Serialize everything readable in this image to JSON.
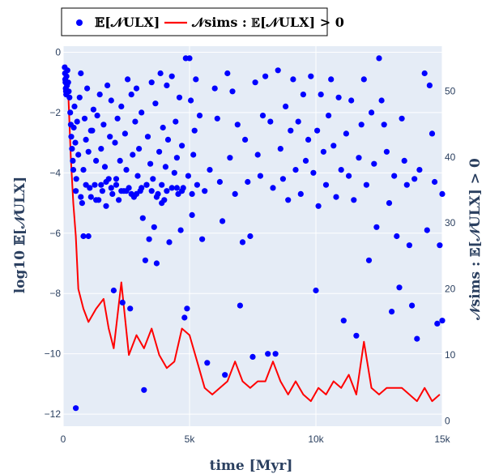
{
  "chart_data": {
    "type": "scatter",
    "legend_position": "top-left",
    "grid": true,
    "colors": {
      "plot_bg": "#E5ECF6",
      "grid": "#ffffff",
      "points": "#0000ff",
      "line": "#ff0000",
      "text": "#2a3f5f"
    },
    "xlabel": "time [Myr]",
    "ylabel_left": "log10 𝔼[𝒩ULX]",
    "ylabel_right": "𝒩sims : 𝔼[𝒩ULX] > 0",
    "xlim": [
      0,
      15000
    ],
    "ylim_left": [
      -12.4,
      0.2
    ],
    "ylim_right": [
      -0.8,
      56.8
    ],
    "x_ticks": [
      {
        "value": 0,
        "label": "0"
      },
      {
        "value": 5000,
        "label": "5k"
      },
      {
        "value": 10000,
        "label": "10k"
      },
      {
        "value": 15000,
        "label": "15k"
      }
    ],
    "y_ticks_left": [
      {
        "value": 0,
        "label": "0"
      },
      {
        "value": -2,
        "label": "−2"
      },
      {
        "value": -4,
        "label": "−4"
      },
      {
        "value": -6,
        "label": "−6"
      },
      {
        "value": -8,
        "label": "−8"
      },
      {
        "value": -10,
        "label": "−10"
      },
      {
        "value": -12,
        "label": "−12"
      }
    ],
    "y_ticks_right": [
      {
        "value": 0,
        "label": "0"
      },
      {
        "value": 10,
        "label": "10"
      },
      {
        "value": 20,
        "label": "20"
      },
      {
        "value": 30,
        "label": "30"
      },
      {
        "value": 40,
        "label": "40"
      },
      {
        "value": 50,
        "label": "50"
      }
    ],
    "series": [
      {
        "name": "𝔼[𝒩ULX]",
        "type": "scatter",
        "axis": "left",
        "points": [
          [
            60,
            -0.5
          ],
          [
            70,
            -0.7
          ],
          [
            80,
            -0.9
          ],
          [
            90,
            -1.0
          ],
          [
            100,
            -1.2
          ],
          [
            110,
            -1.3
          ],
          [
            120,
            -1.4
          ],
          [
            130,
            -0.8
          ],
          [
            150,
            -1.1
          ],
          [
            170,
            -0.6
          ],
          [
            200,
            -1.0
          ],
          [
            220,
            -1.3
          ],
          [
            250,
            -1.5
          ],
          [
            280,
            -2.0
          ],
          [
            300,
            -2.4
          ],
          [
            320,
            -2.8
          ],
          [
            350,
            -3.2
          ],
          [
            380,
            -3.6
          ],
          [
            400,
            -3.9
          ],
          [
            420,
            -2.5
          ],
          [
            450,
            -1.8
          ],
          [
            480,
            -3.0
          ],
          [
            500,
            -11.8
          ],
          [
            520,
            -4.2
          ],
          [
            550,
            -2.3
          ],
          [
            600,
            -3.4
          ],
          [
            650,
            -1.5
          ],
          [
            700,
            -0.7
          ],
          [
            750,
            -5.0
          ],
          [
            800,
            -3.9
          ],
          [
            800,
            -6.1
          ],
          [
            850,
            -2.2
          ],
          [
            900,
            -2.9
          ],
          [
            950,
            -1.2
          ],
          [
            1000,
            -3.3
          ],
          [
            1000,
            -6.1
          ],
          [
            1050,
            -4.5
          ],
          [
            1100,
            -4.8
          ],
          [
            1150,
            -2.6
          ],
          [
            1200,
            -1.9
          ],
          [
            1250,
            -4.4
          ],
          [
            1300,
            -3.6
          ],
          [
            1350,
            -2.1
          ],
          [
            1400,
            -4.9
          ],
          [
            1450,
            -1.4
          ],
          [
            1500,
            -3.2
          ],
          [
            1550,
            -4.6
          ],
          [
            1600,
            -2.4
          ],
          [
            1650,
            -3.8
          ],
          [
            1700,
            -5.1
          ],
          [
            1750,
            -1.1
          ],
          [
            1800,
            -4.2
          ],
          [
            1850,
            -2.8
          ],
          [
            1900,
            -1.6
          ],
          [
            1950,
            -4.7
          ],
          [
            2000,
            -7.9
          ],
          [
            2050,
            -3.0
          ],
          [
            2100,
            -4.4
          ],
          [
            2150,
            -2.2
          ],
          [
            2200,
            -4.9
          ],
          [
            2250,
            -3.6
          ],
          [
            2300,
            -1.8
          ],
          [
            2350,
            -8.3
          ],
          [
            2400,
            -4.6
          ],
          [
            2450,
            -2.7
          ],
          [
            2500,
            -3.9
          ],
          [
            2550,
            -0.9
          ],
          [
            2600,
            -4.5
          ],
          [
            2650,
            -8.5
          ],
          [
            2700,
            -1.4
          ],
          [
            2750,
            -3.4
          ],
          [
            2800,
            -4.8
          ],
          [
            2850,
            -2.3
          ],
          [
            2900,
            -1.2
          ],
          [
            2950,
            -4.1
          ],
          [
            3000,
            -3.2
          ],
          [
            3050,
            -4.6
          ],
          [
            3100,
            -2.0
          ],
          [
            3150,
            -5.5
          ],
          [
            3200,
            -11.2
          ],
          [
            3250,
            -6.9
          ],
          [
            3300,
            -4.4
          ],
          [
            3350,
            -2.8
          ],
          [
            3400,
            -6.2
          ],
          [
            3450,
            -3.7
          ],
          [
            3500,
            -1.0
          ],
          [
            3550,
            -4.2
          ],
          [
            3600,
            -5.8
          ],
          [
            3650,
            -1.7
          ],
          [
            3700,
            -7.0
          ],
          [
            3750,
            -4.7
          ],
          [
            3800,
            -3.3
          ],
          [
            3850,
            -0.7
          ],
          [
            3900,
            -5.0
          ],
          [
            3950,
            -2.5
          ],
          [
            4000,
            -4.9
          ],
          [
            4050,
            -3.8
          ],
          [
            4100,
            -1.1
          ],
          [
            4150,
            -2.9
          ],
          [
            4200,
            -6.3
          ],
          [
            4300,
            -0.8
          ],
          [
            4400,
            -4.0
          ],
          [
            4450,
            -2.3
          ],
          [
            4500,
            -3.5
          ],
          [
            4550,
            -4.7
          ],
          [
            4600,
            -1.5
          ],
          [
            4650,
            -5.9
          ],
          [
            4700,
            -3.1
          ],
          [
            4750,
            -4.5
          ],
          [
            4800,
            -8.8
          ],
          [
            4850,
            -0.2
          ],
          [
            4900,
            -8.5
          ],
          [
            4950,
            -4.1
          ],
          [
            5000,
            -0.2
          ],
          [
            5050,
            -1.6
          ],
          [
            5100,
            -5.4
          ],
          [
            5150,
            -3.4
          ],
          [
            5200,
            -2.6
          ],
          [
            5250,
            -0.9
          ],
          [
            5300,
            -4.4
          ],
          [
            5400,
            -2.1
          ],
          [
            5500,
            -6.2
          ],
          [
            5600,
            -4.6
          ],
          [
            5700,
            -10.3
          ],
          [
            5800,
            -3.9
          ],
          [
            6000,
            -1.2
          ],
          [
            6100,
            -2.2
          ],
          [
            6200,
            -4.3
          ],
          [
            6300,
            -5.6
          ],
          [
            6400,
            -10.7
          ],
          [
            6500,
            -0.7
          ],
          [
            6600,
            -3.5
          ],
          [
            6700,
            -1.3
          ],
          [
            6800,
            -4.7
          ],
          [
            6900,
            -2.4
          ],
          [
            7000,
            -8.4
          ],
          [
            7100,
            -6.3
          ],
          [
            7200,
            -2.9
          ],
          [
            7300,
            -4.3
          ],
          [
            7400,
            -6.1
          ],
          [
            7500,
            -10.1
          ],
          [
            7600,
            -1.0
          ],
          [
            7700,
            -3.4
          ],
          [
            7800,
            -4.1
          ],
          [
            7900,
            -2.1
          ],
          [
            8000,
            -0.8
          ],
          [
            8100,
            -10.0
          ],
          [
            8200,
            -2.3
          ],
          [
            8300,
            -4.5
          ],
          [
            8400,
            -10.0
          ],
          [
            8500,
            -0.6
          ],
          [
            8600,
            -3.2
          ],
          [
            8700,
            -4.2
          ],
          [
            8800,
            -1.8
          ],
          [
            8900,
            -4.9
          ],
          [
            9000,
            -2.6
          ],
          [
            9100,
            -0.9
          ],
          [
            9200,
            -3.9
          ],
          [
            9300,
            -2.3
          ],
          [
            9400,
            -4.7
          ],
          [
            9500,
            -1.4
          ],
          [
            9600,
            -3.6
          ],
          [
            9700,
            -2.9
          ],
          [
            9800,
            -0.8
          ],
          [
            9900,
            -4.0
          ],
          [
            10000,
            -7.9
          ],
          [
            10050,
            -2.6
          ],
          [
            10100,
            -5.1
          ],
          [
            10200,
            -1.4
          ],
          [
            10300,
            -3.3
          ],
          [
            10400,
            -4.4
          ],
          [
            10500,
            -2.1
          ],
          [
            10600,
            -0.9
          ],
          [
            10700,
            -3.1
          ],
          [
            10800,
            -4.8
          ],
          [
            10900,
            -1.5
          ],
          [
            11000,
            -3.9
          ],
          [
            11100,
            -8.9
          ],
          [
            11200,
            -2.7
          ],
          [
            11300,
            -4.1
          ],
          [
            11400,
            -1.6
          ],
          [
            11500,
            -4.9
          ],
          [
            11600,
            -9.4
          ],
          [
            11700,
            -3.5
          ],
          [
            11800,
            -2.4
          ],
          [
            11900,
            -0.9
          ],
          [
            12000,
            -4.4
          ],
          [
            12100,
            -6.9
          ],
          [
            12200,
            -2.0
          ],
          [
            12300,
            -3.7
          ],
          [
            12400,
            -5.8
          ],
          [
            12500,
            -0.2
          ],
          [
            12600,
            -1.6
          ],
          [
            12700,
            -2.4
          ],
          [
            12800,
            -3.3
          ],
          [
            12900,
            -5.0
          ],
          [
            13000,
            -8.6
          ],
          [
            13100,
            -4.1
          ],
          [
            13200,
            -6.1
          ],
          [
            13300,
            -7.8
          ],
          [
            13400,
            -2.2
          ],
          [
            13500,
            -3.6
          ],
          [
            13600,
            -4.4
          ],
          [
            13700,
            -6.4
          ],
          [
            13800,
            -8.4
          ],
          [
            13900,
            -4.2
          ],
          [
            14000,
            -9.5
          ],
          [
            14100,
            -3.9
          ],
          [
            14300,
            -0.7
          ],
          [
            14400,
            -5.9
          ],
          [
            14500,
            -1.1
          ],
          [
            14600,
            -2.7
          ],
          [
            14700,
            -4.3
          ],
          [
            14800,
            -9.0
          ],
          [
            14900,
            -6.4
          ],
          [
            15000,
            -4.7
          ],
          [
            15000,
            -8.9
          ],
          [
            500,
            -4.6
          ],
          [
            900,
            -4.4
          ],
          [
            1100,
            -2.6
          ],
          [
            1500,
            -4.4
          ],
          [
            1900,
            -4.5
          ],
          [
            2300,
            -4.6
          ],
          [
            2700,
            -4.7
          ],
          [
            3100,
            -4.5
          ],
          [
            3500,
            -4.6
          ],
          [
            3900,
            -4.4
          ],
          [
            4300,
            -4.5
          ],
          [
            4700,
            -4.6
          ],
          [
            5100,
            -4.7
          ],
          [
            700,
            -4.8
          ],
          [
            1300,
            -4.9
          ],
          [
            1700,
            -4.3
          ],
          [
            2100,
            -4.2
          ],
          [
            2500,
            -4.6
          ],
          [
            2900,
            -4.7
          ],
          [
            3300,
            -4.4
          ],
          [
            3700,
            -4.8
          ],
          [
            4100,
            -4.6
          ],
          [
            4500,
            -4.5
          ]
        ]
      },
      {
        "name": "𝒩sims : 𝔼[𝒩ULX] > 0",
        "type": "line",
        "axis": "right",
        "points": [
          [
            100,
            54
          ],
          [
            200,
            50
          ],
          [
            300,
            40
          ],
          [
            400,
            33
          ],
          [
            500,
            28
          ],
          [
            600,
            20
          ],
          [
            800,
            17
          ],
          [
            1000,
            15
          ],
          [
            1300,
            17
          ],
          [
            1600,
            18.5
          ],
          [
            1800,
            14
          ],
          [
            2000,
            11
          ],
          [
            2300,
            21
          ],
          [
            2600,
            10
          ],
          [
            2900,
            13
          ],
          [
            3200,
            11
          ],
          [
            3500,
            14
          ],
          [
            3800,
            10
          ],
          [
            4100,
            8
          ],
          [
            4400,
            9
          ],
          [
            4700,
            14
          ],
          [
            5000,
            13
          ],
          [
            5300,
            9
          ],
          [
            5600,
            5
          ],
          [
            5900,
            4
          ],
          [
            6200,
            5
          ],
          [
            6500,
            6
          ],
          [
            6800,
            9
          ],
          [
            7100,
            6
          ],
          [
            7400,
            5
          ],
          [
            7700,
            6
          ],
          [
            8000,
            6
          ],
          [
            8300,
            9
          ],
          [
            8600,
            6
          ],
          [
            8900,
            4
          ],
          [
            9200,
            6
          ],
          [
            9500,
            4
          ],
          [
            9800,
            3
          ],
          [
            10100,
            5
          ],
          [
            10400,
            4
          ],
          [
            10700,
            6
          ],
          [
            11000,
            5
          ],
          [
            11300,
            7
          ],
          [
            11600,
            4
          ],
          [
            11900,
            12
          ],
          [
            12200,
            5
          ],
          [
            12500,
            4
          ],
          [
            12800,
            5
          ],
          [
            13100,
            5
          ],
          [
            13400,
            5
          ],
          [
            13700,
            4
          ],
          [
            14000,
            3
          ],
          [
            14300,
            5
          ],
          [
            14600,
            3
          ],
          [
            14900,
            4
          ]
        ]
      }
    ]
  }
}
